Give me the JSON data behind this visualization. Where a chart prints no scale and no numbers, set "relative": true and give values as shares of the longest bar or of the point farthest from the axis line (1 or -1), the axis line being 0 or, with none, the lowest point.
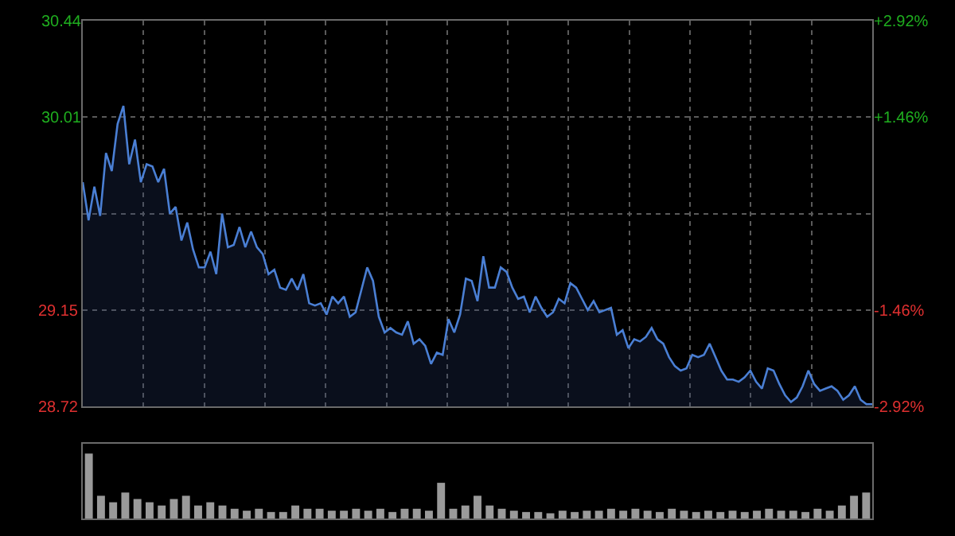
{
  "chart_data": [
    {
      "type": "area",
      "categories": [
        null,
        null,
        null,
        null,
        null,
        null,
        null,
        null,
        null,
        null,
        null,
        null,
        null,
        null,
        null,
        null,
        null,
        null,
        null,
        null,
        null,
        null,
        null,
        null,
        null,
        null,
        null,
        null,
        null,
        null,
        null,
        null,
        null,
        null,
        null,
        null,
        null,
        null,
        null,
        null,
        null,
        null,
        null,
        null,
        null,
        null,
        null,
        null,
        null,
        null,
        null,
        null,
        null,
        null,
        null,
        null,
        null,
        null,
        null,
        null,
        null,
        null,
        null,
        null,
        null,
        null,
        null,
        null,
        null,
        null,
        null,
        null,
        null,
        null,
        null,
        null,
        null,
        null,
        null,
        null,
        null,
        null,
        null,
        null,
        null,
        null,
        null,
        null,
        null,
        null,
        null,
        null,
        null,
        null,
        null,
        null,
        null,
        null,
        null,
        null,
        null,
        null,
        null,
        null,
        null,
        null,
        null,
        null,
        null,
        null,
        null,
        null,
        null,
        null,
        null,
        null,
        null,
        null,
        null,
        null,
        null,
        null,
        null,
        null,
        null,
        null,
        null,
        null,
        null,
        null,
        null,
        null,
        null,
        null,
        null,
        null,
        null
      ],
      "ylim": [
        28.72,
        30.44
      ],
      "yticks": [
        28.72,
        29.15,
        {
          "value": 29.58,
          "label": null
        },
        30.01,
        30.44
      ],
      "y2lim": [
        -2.92,
        2.92
      ],
      "y2ticks": [
        {
          "value": -2.92,
          "label": "-2.92%"
        },
        {
          "value": -1.46,
          "label": "-1.46%"
        },
        {
          "value": 0,
          "label": null
        },
        {
          "value": 1.46,
          "label": "+1.46%"
        },
        {
          "value": 2.92,
          "label": "+2.92%"
        }
      ],
      "grid": true,
      "tick_labels": "y",
      "series": [
        {
          "color": "#4a7fd4",
          "values": [
            29.72,
            29.55,
            29.7,
            29.57,
            29.85,
            29.77,
            29.98,
            30.06,
            29.8,
            29.91,
            29.72,
            29.8,
            29.79,
            29.72,
            29.78,
            29.58,
            29.61,
            29.46,
            29.54,
            29.42,
            29.34,
            29.34,
            29.41,
            29.31,
            29.58,
            29.43,
            29.44,
            29.52,
            29.43,
            29.5,
            29.43,
            29.4,
            29.31,
            29.33,
            29.25,
            29.24,
            29.29,
            29.24,
            29.31,
            29.18,
            29.17,
            29.18,
            29.13,
            29.21,
            29.18,
            29.21,
            29.12,
            29.14,
            29.24,
            29.34,
            29.28,
            29.12,
            29.05,
            29.07,
            29.05,
            29.04,
            29.1,
            29.0,
            29.02,
            28.99,
            28.91,
            28.96,
            28.95,
            29.11,
            29.05,
            29.13,
            29.29,
            29.28,
            29.19,
            29.39,
            29.25,
            29.25,
            29.34,
            29.32,
            29.25,
            29.2,
            29.21,
            29.14,
            29.21,
            29.16,
            29.12,
            29.14,
            29.2,
            29.18,
            29.27,
            29.25,
            29.2,
            29.15,
            29.19,
            29.14,
            29.15,
            29.16,
            29.04,
            29.06,
            28.98,
            29.02,
            29.01,
            29.03,
            29.07,
            29.02,
            29.0,
            28.94,
            28.9,
            28.88,
            28.89,
            28.95,
            28.94,
            28.95,
            29.0,
            28.94,
            28.88,
            28.84,
            28.84,
            28.83,
            28.85,
            28.88,
            28.83,
            28.8,
            28.89,
            28.88,
            28.82,
            28.77,
            28.74,
            28.76,
            28.81,
            28.88,
            28.82,
            28.79,
            28.8,
            28.81,
            28.79,
            28.75,
            28.77,
            28.81,
            28.75,
            28.73,
            28.73
          ]
        }
      ]
    },
    {
      "type": "bar",
      "relative": true,
      "tick_labels": false,
      "categories": [
        null,
        null,
        null,
        null,
        null,
        null,
        null,
        null,
        null,
        null,
        null,
        null,
        null,
        null,
        null,
        null,
        null,
        null,
        null,
        null,
        null,
        null,
        null,
        null,
        null,
        null,
        null,
        null,
        null,
        null,
        null,
        null,
        null,
        null,
        null,
        null,
        null,
        null,
        null,
        null,
        null,
        null,
        null,
        null,
        null,
        null,
        null,
        null,
        null,
        null,
        null,
        null,
        null,
        null,
        null,
        null,
        null,
        null,
        null,
        null,
        null,
        null,
        null,
        null,
        null
      ],
      "series": [
        {
          "color": "#9a9a9a",
          "values": [
            1,
            0.35,
            0.25,
            0.4,
            0.3,
            0.25,
            0.2,
            0.3,
            0.35,
            0.2,
            0.25,
            0.2,
            0.15,
            0.12,
            0.15,
            0.1,
            0.1,
            0.2,
            0.15,
            0.15,
            0.12,
            0.12,
            0.15,
            0.12,
            0.15,
            0.1,
            0.15,
            0.15,
            0.12,
            0.55,
            0.15,
            0.2,
            0.35,
            0.2,
            0.15,
            0.12,
            0.1,
            0.1,
            0.08,
            0.12,
            0.1,
            0.12,
            0.12,
            0.15,
            0.12,
            0.15,
            0.12,
            0.1,
            0.15,
            0.12,
            0.1,
            0.12,
            0.1,
            0.12,
            0.1,
            0.12,
            0.15,
            0.12,
            0.12,
            0.1,
            0.15,
            0.12,
            0.2,
            0.35,
            0.4
          ]
        }
      ]
    }
  ]
}
